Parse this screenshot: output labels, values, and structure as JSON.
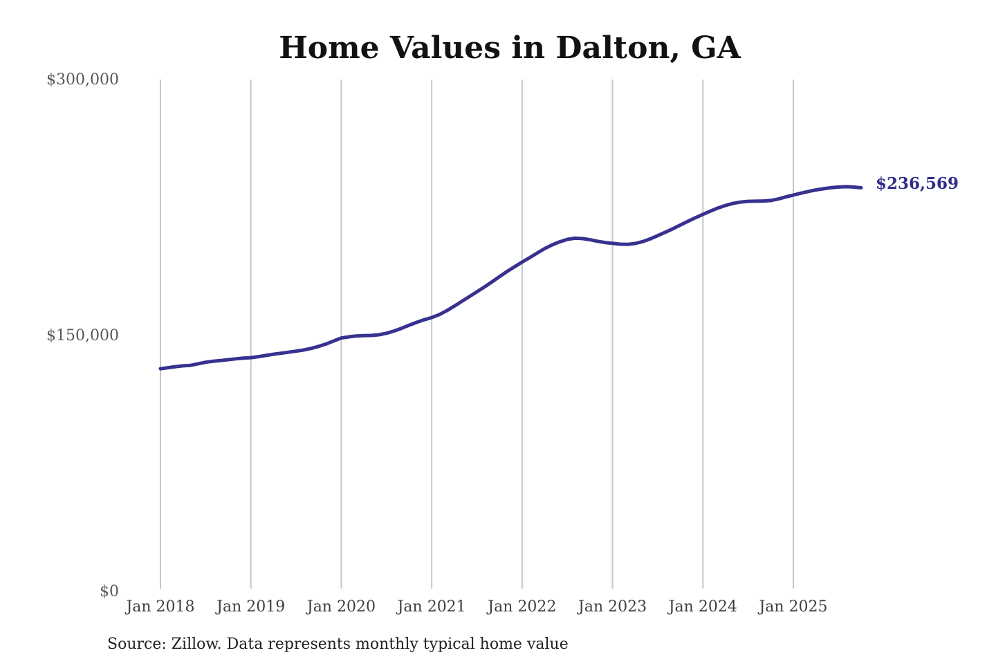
{
  "title": "Home Values in Dalton, GA",
  "source_note": "Source: Zillow. Data represents monthly typical home value",
  "end_label": "$236,569",
  "colors": {
    "line": "#37318f",
    "value_label": "#312c88",
    "grid": "#c6c6c6",
    "y_tick_text": "#55585c",
    "x_tick_text": "#3c3f43",
    "title_text": "#111214",
    "source_text": "#202124",
    "background": "#ffffff"
  },
  "y_axis": {
    "min": 0,
    "max": 300000,
    "ticks": [
      {
        "label": "$300,000",
        "value": 300000
      },
      {
        "label": "$150,000",
        "value": 150000
      },
      {
        "label": "$0",
        "value": 0
      }
    ]
  },
  "x_axis": {
    "ticks": [
      "Jan 2018",
      "Jan 2019",
      "Jan 2020",
      "Jan 2021",
      "Jan 2022",
      "Jan 2023",
      "Jan 2024",
      "Jan 2025"
    ]
  },
  "chart_data": {
    "type": "line",
    "title": "Home Values in Dalton, GA",
    "xlabel": "",
    "ylabel": "",
    "ylim": [
      0,
      300000
    ],
    "grid": "vertical-only",
    "legend": "none",
    "annotation": "$236,569",
    "x": [
      "2018-01",
      "2018-02",
      "2018-03",
      "2018-04",
      "2018-05",
      "2018-06",
      "2018-07",
      "2018-08",
      "2018-09",
      "2018-10",
      "2018-11",
      "2018-12",
      "2019-01",
      "2019-02",
      "2019-03",
      "2019-04",
      "2019-05",
      "2019-06",
      "2019-07",
      "2019-08",
      "2019-09",
      "2019-10",
      "2019-11",
      "2019-12",
      "2020-01",
      "2020-02",
      "2020-03",
      "2020-04",
      "2020-05",
      "2020-06",
      "2020-07",
      "2020-08",
      "2020-09",
      "2020-10",
      "2020-11",
      "2020-12",
      "2021-01",
      "2021-02",
      "2021-03",
      "2021-04",
      "2021-05",
      "2021-06",
      "2021-07",
      "2021-08",
      "2021-09",
      "2021-10",
      "2021-11",
      "2021-12",
      "2022-01",
      "2022-02",
      "2022-03",
      "2022-04",
      "2022-05",
      "2022-06",
      "2022-07",
      "2022-08",
      "2022-09",
      "2022-10",
      "2022-11",
      "2022-12",
      "2023-01",
      "2023-02",
      "2023-03",
      "2023-04",
      "2023-05",
      "2023-06",
      "2023-07",
      "2023-08",
      "2023-09",
      "2023-10",
      "2023-11",
      "2023-12",
      "2024-01",
      "2024-02",
      "2024-03",
      "2024-04",
      "2024-05",
      "2024-06",
      "2024-07",
      "2024-08",
      "2024-09",
      "2024-10",
      "2024-11",
      "2024-12",
      "2025-01",
      "2025-02",
      "2025-03",
      "2025-04",
      "2025-05",
      "2025-06",
      "2025-07",
      "2025-08",
      "2025-09",
      "2025-10"
    ],
    "values": [
      130500,
      131100,
      131700,
      132200,
      132500,
      133400,
      134300,
      134900,
      135300,
      135800,
      136300,
      136700,
      137000,
      137600,
      138300,
      139000,
      139600,
      140200,
      140800,
      141500,
      142400,
      143600,
      145000,
      146800,
      148500,
      149200,
      149700,
      149900,
      150000,
      150400,
      151300,
      152600,
      154200,
      156000,
      157700,
      159200,
      160500,
      162200,
      164500,
      167200,
      170000,
      172800,
      175600,
      178400,
      181400,
      184500,
      187500,
      190300,
      193000,
      195600,
      198300,
      200900,
      203100,
      204900,
      206300,
      207000,
      206800,
      206100,
      205200,
      204500,
      204000,
      203500,
      203400,
      203900,
      205000,
      206600,
      208500,
      210500,
      212500,
      214700,
      216900,
      219000,
      221000,
      222900,
      224700,
      226200,
      227400,
      228200,
      228600,
      228700,
      228800,
      229100,
      230000,
      231200,
      232300,
      233400,
      234400,
      235300,
      236000,
      236600,
      237000,
      237200,
      237000,
      236569
    ]
  }
}
